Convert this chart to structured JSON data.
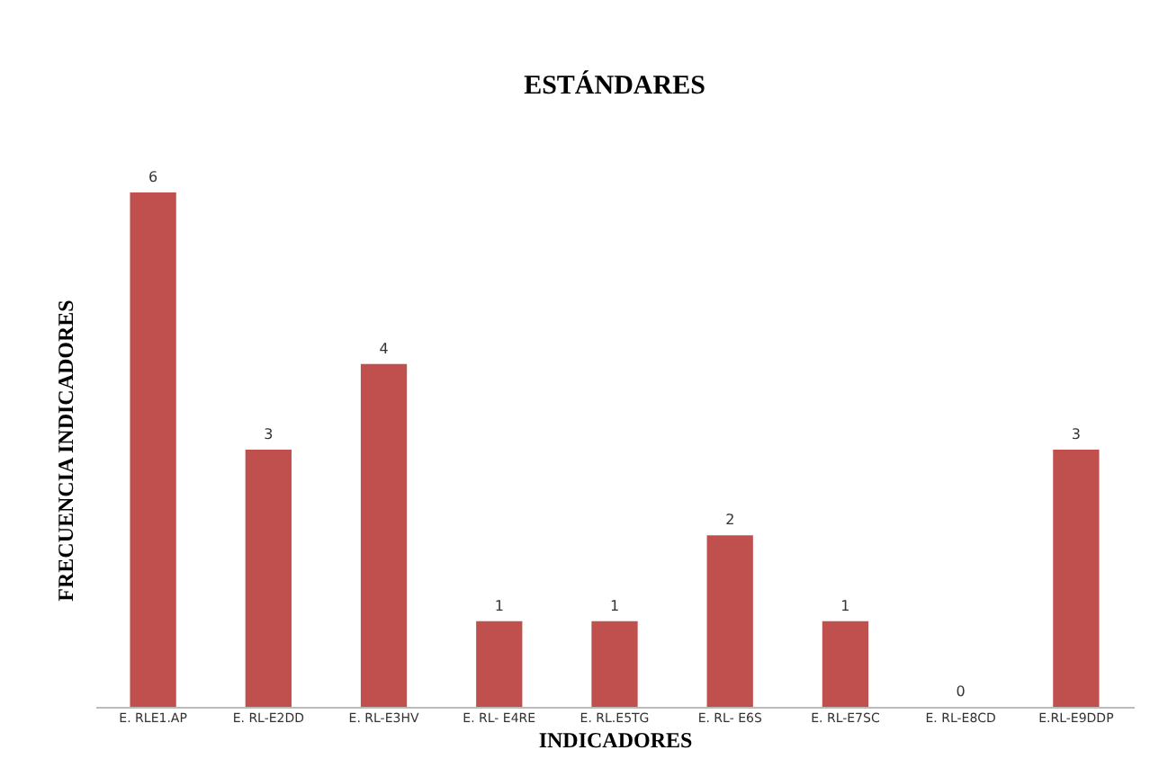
{
  "chart_data": {
    "type": "bar",
    "title": "ESTÁNDARES",
    "xlabel": "INDICADORES",
    "ylabel": "FRECUENCIA  INDICADORES",
    "categories": [
      "E. RLE1.AP",
      "E. RL-E2DD",
      "E. RL-E3HV",
      "E. RL- E4RE",
      "E. RL.E5TG",
      "E. RL- E6S",
      "E. RL-E7SC",
      "E. RL-E8CD",
      "E.RL-E9DDP"
    ],
    "values": [
      6,
      3,
      4,
      1,
      1,
      2,
      1,
      0,
      3
    ],
    "color": "#c0504d",
    "data_labels": true
  }
}
